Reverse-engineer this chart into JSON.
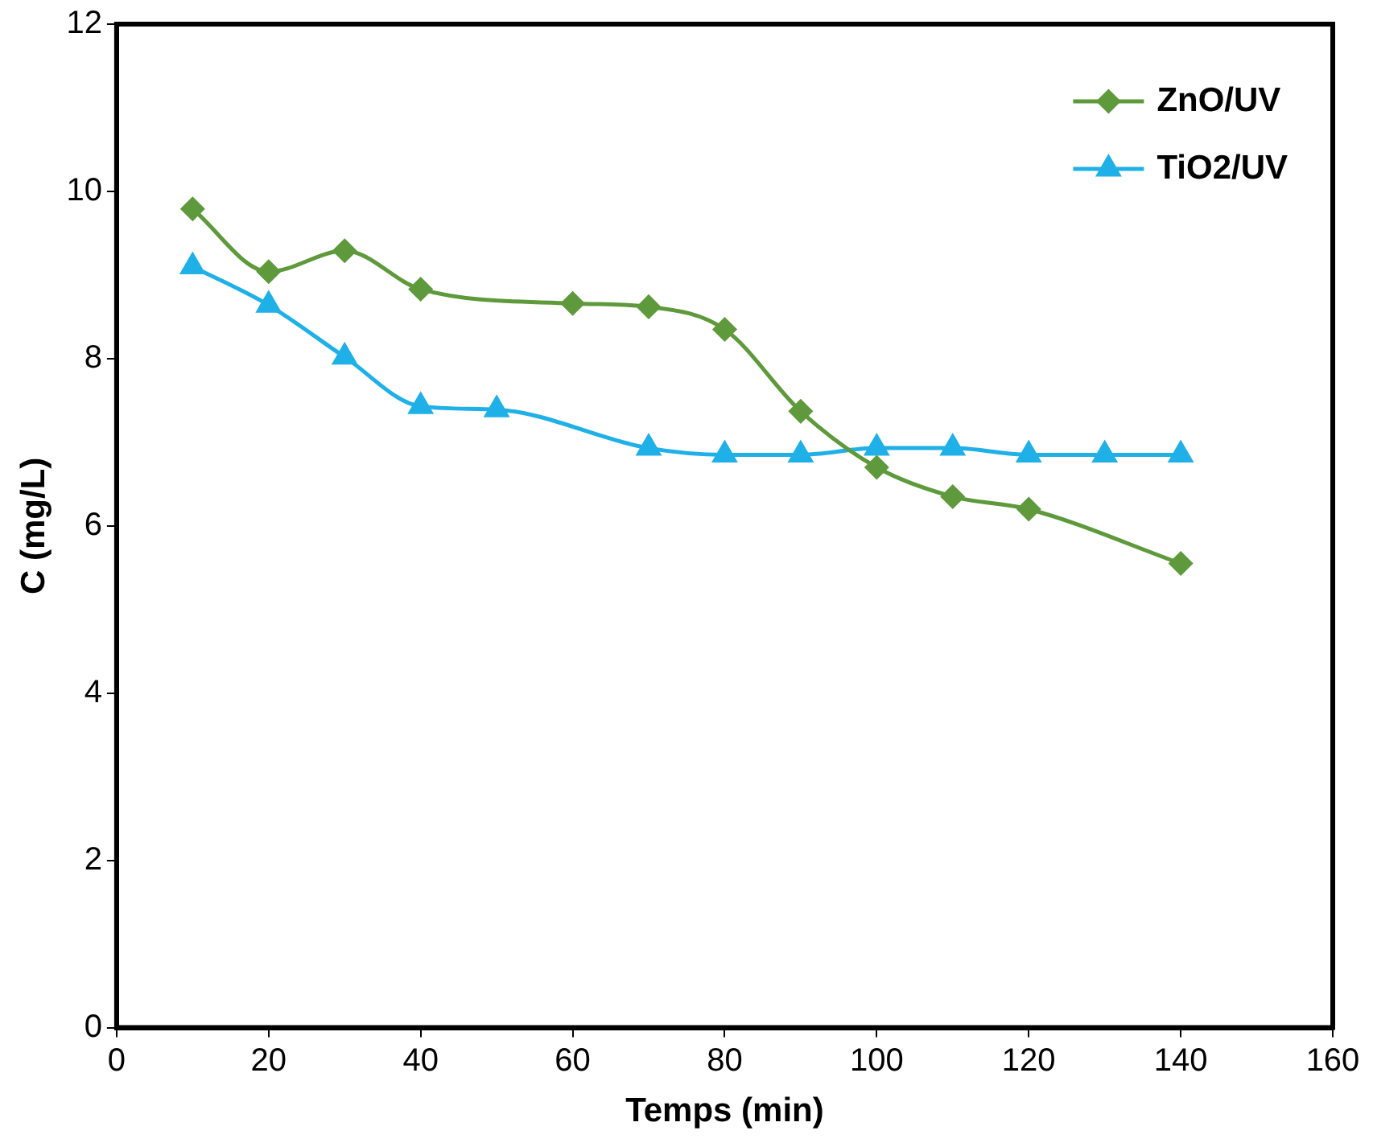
{
  "chart_data": {
    "type": "line",
    "xlabel": "Temps (min)",
    "ylabel": "C (mg/L)",
    "xlim": [
      0,
      160
    ],
    "xticks": [
      0,
      20,
      40,
      60,
      80,
      100,
      120,
      140,
      160
    ],
    "ylim": [
      0,
      12
    ],
    "yticks": [
      0,
      2,
      4,
      6,
      8,
      10,
      12
    ],
    "grid": false,
    "legend": "top right",
    "series": [
      {
        "name": "ZnO/UV",
        "color": "#5e9a3c",
        "marker": "diamond",
        "x": [
          10,
          20,
          30,
          40,
          60,
          70,
          80,
          90,
          100,
          110,
          120,
          140
        ],
        "values": [
          9.79,
          9.04,
          9.29,
          8.83,
          8.66,
          8.62,
          8.35,
          7.37,
          6.7,
          6.35,
          6.2,
          5.55
        ]
      },
      {
        "name": "TiO2/UV",
        "color": "#1fb0e8",
        "marker": "triangle",
        "x": [
          10,
          20,
          30,
          40,
          50,
          70,
          80,
          90,
          100,
          110,
          120,
          130,
          140
        ],
        "values": [
          9.1,
          8.64,
          8.02,
          7.43,
          7.39,
          6.93,
          6.85,
          6.85,
          6.93,
          6.93,
          6.85,
          6.85,
          6.85
        ]
      }
    ]
  }
}
